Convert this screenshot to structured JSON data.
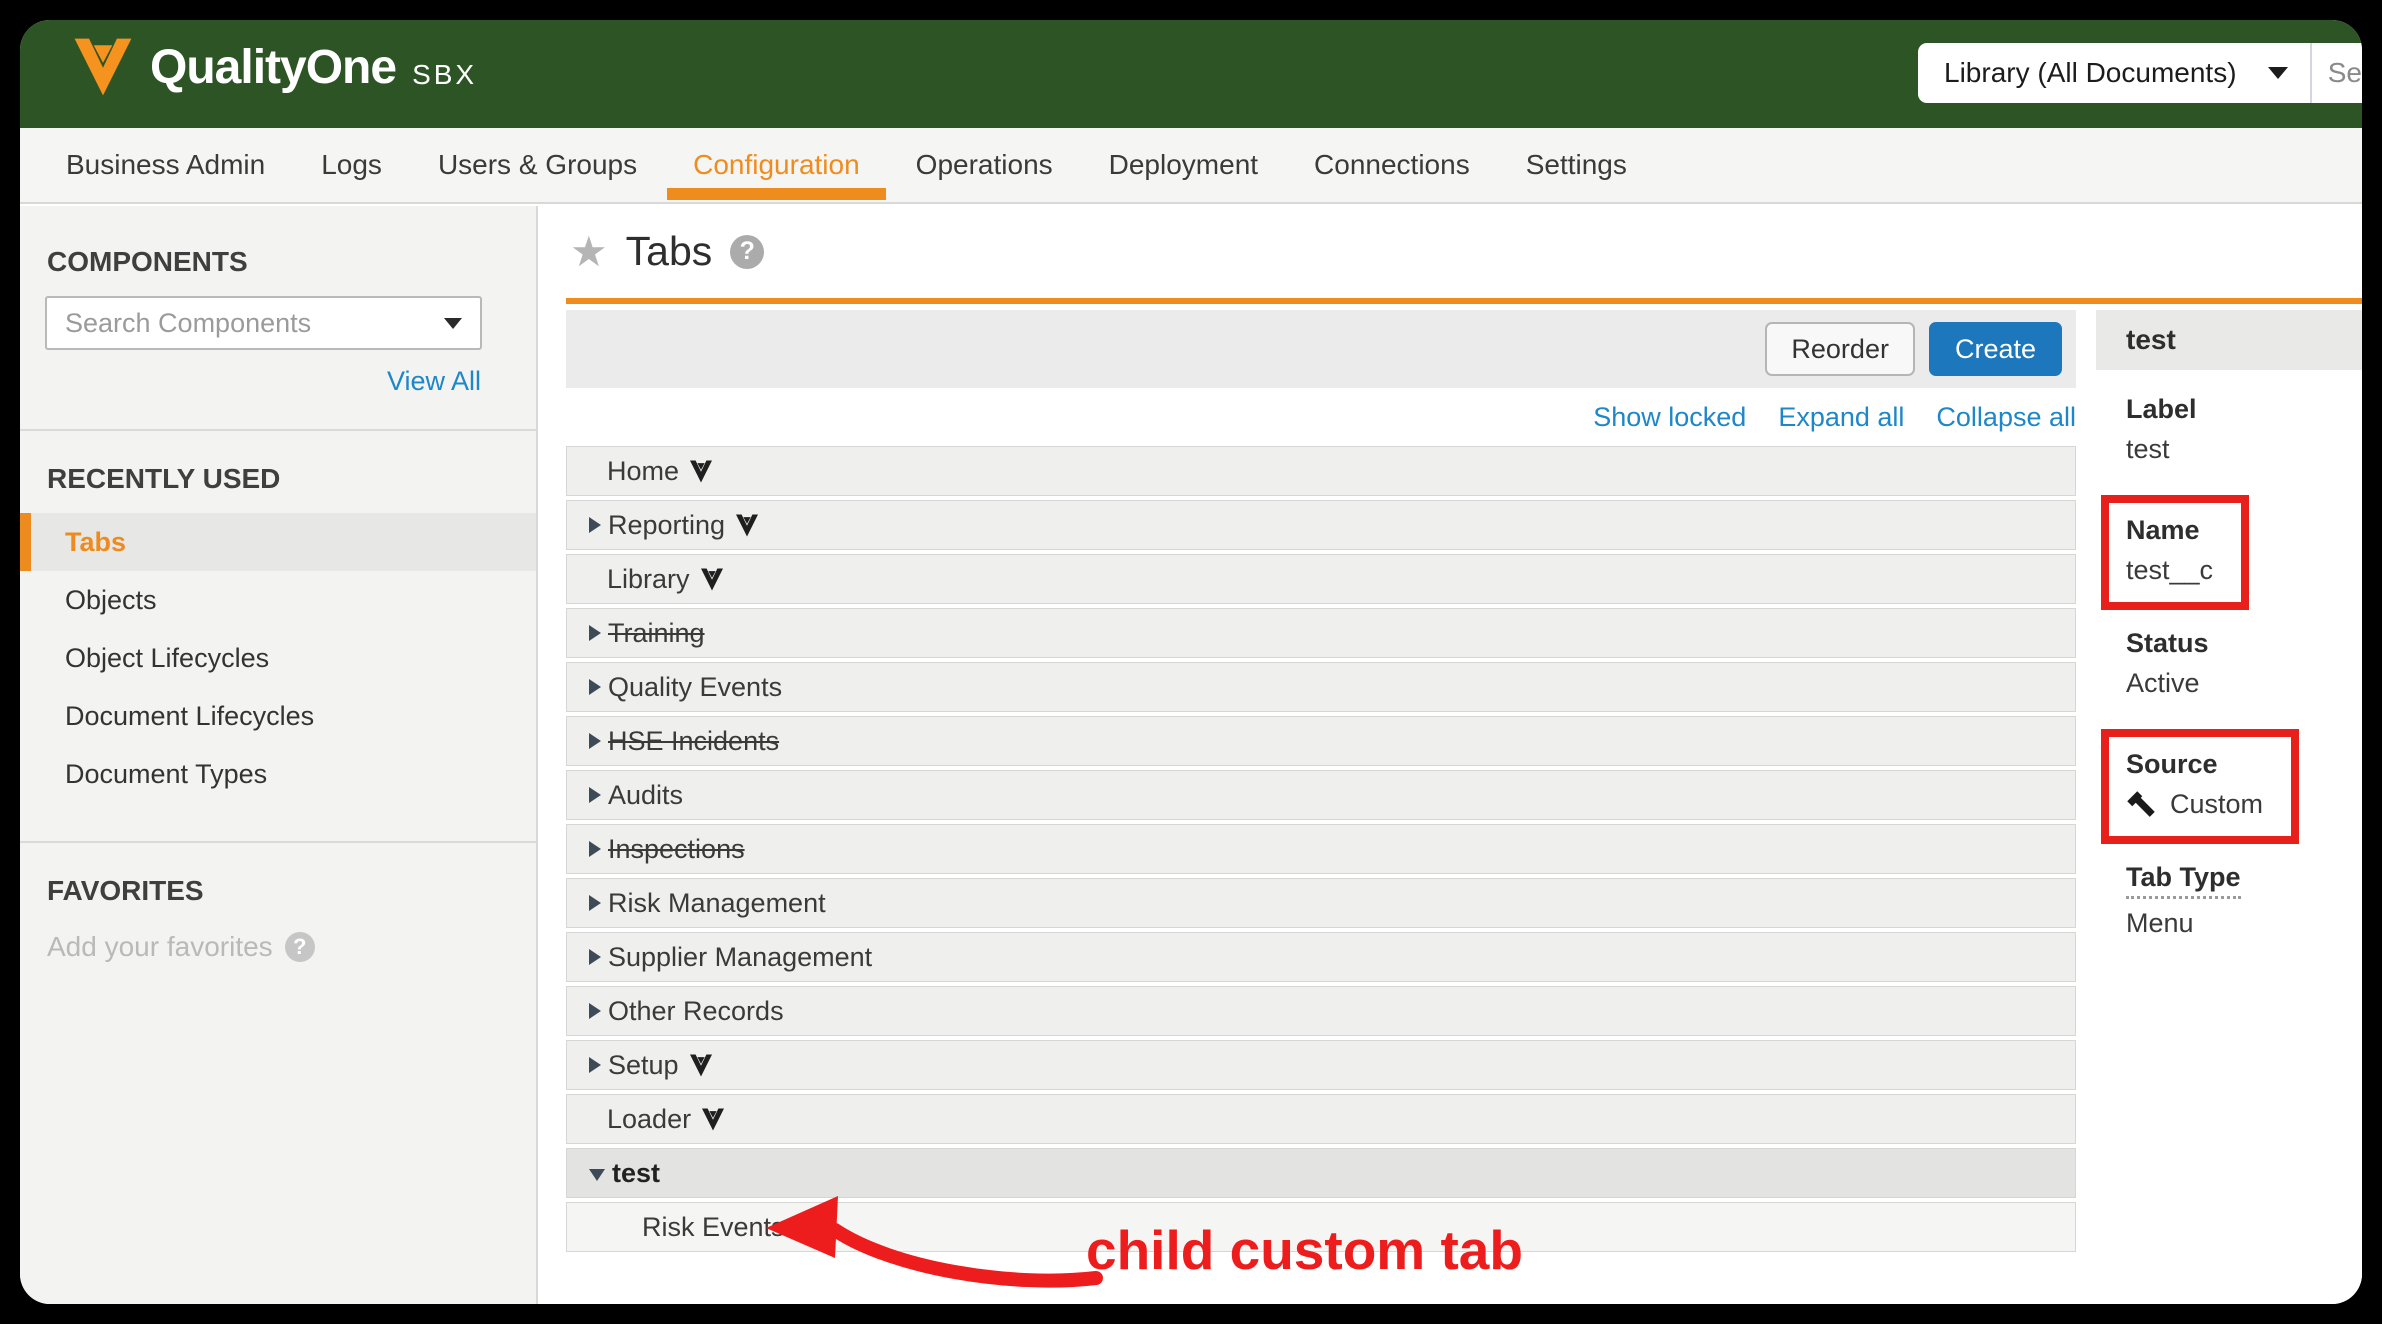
{
  "brand": {
    "name": "QualityOne",
    "env": "SBX"
  },
  "header": {
    "scope_dropdown": "Library (All Documents)",
    "search_placeholder_visible": "Se"
  },
  "nav": {
    "items": [
      "Business Admin",
      "Logs",
      "Users & Groups",
      "Configuration",
      "Operations",
      "Deployment",
      "Connections",
      "Settings"
    ],
    "active": "Configuration"
  },
  "sidebar": {
    "components_heading": "COMPONENTS",
    "search_placeholder": "Search Components",
    "view_all": "View All",
    "recently_used_heading": "RECENTLY USED",
    "recent_items": [
      "Tabs",
      "Objects",
      "Object Lifecycles",
      "Document Lifecycles",
      "Document Types"
    ],
    "selected_item": "Tabs",
    "favorites_heading": "FAVORITES",
    "favorites_empty": "Add your favorites"
  },
  "main": {
    "title": "Tabs",
    "reorder_label": "Reorder",
    "create_label": "Create",
    "links": [
      "Show locked",
      "Expand all",
      "Collapse all"
    ],
    "tab_rows": [
      {
        "label": "Home",
        "expandable": false,
        "vault_icon": true,
        "strikethrough": false,
        "child": false,
        "selected": false,
        "expanded": false
      },
      {
        "label": "Reporting",
        "expandable": true,
        "vault_icon": true,
        "strikethrough": false,
        "child": false,
        "selected": false,
        "expanded": false
      },
      {
        "label": "Library",
        "expandable": false,
        "vault_icon": true,
        "strikethrough": false,
        "child": false,
        "selected": false,
        "expanded": false
      },
      {
        "label": "Training",
        "expandable": true,
        "vault_icon": false,
        "strikethrough": true,
        "child": false,
        "selected": false,
        "expanded": false
      },
      {
        "label": "Quality Events",
        "expandable": true,
        "vault_icon": false,
        "strikethrough": false,
        "child": false,
        "selected": false,
        "expanded": false
      },
      {
        "label": "HSE Incidents",
        "expandable": true,
        "vault_icon": false,
        "strikethrough": true,
        "child": false,
        "selected": false,
        "expanded": false
      },
      {
        "label": "Audits",
        "expandable": true,
        "vault_icon": false,
        "strikethrough": false,
        "child": false,
        "selected": false,
        "expanded": false
      },
      {
        "label": "Inspections",
        "expandable": true,
        "vault_icon": false,
        "strikethrough": true,
        "child": false,
        "selected": false,
        "expanded": false
      },
      {
        "label": "Risk Management",
        "expandable": true,
        "vault_icon": false,
        "strikethrough": false,
        "child": false,
        "selected": false,
        "expanded": false
      },
      {
        "label": "Supplier Management",
        "expandable": true,
        "vault_icon": false,
        "strikethrough": false,
        "child": false,
        "selected": false,
        "expanded": false
      },
      {
        "label": "Other Records",
        "expandable": true,
        "vault_icon": false,
        "strikethrough": false,
        "child": false,
        "selected": false,
        "expanded": false
      },
      {
        "label": "Setup",
        "expandable": true,
        "vault_icon": true,
        "strikethrough": false,
        "child": false,
        "selected": false,
        "expanded": false
      },
      {
        "label": "Loader",
        "expandable": false,
        "vault_icon": true,
        "strikethrough": false,
        "child": false,
        "selected": false,
        "expanded": false
      },
      {
        "label": "test",
        "expandable": true,
        "vault_icon": false,
        "strikethrough": false,
        "child": false,
        "selected": true,
        "expanded": true
      },
      {
        "label": "Risk Events",
        "expandable": false,
        "vault_icon": false,
        "strikethrough": false,
        "child": true,
        "selected": false,
        "expanded": false
      }
    ]
  },
  "details_panel": {
    "title": "test",
    "fields": [
      {
        "label": "Label",
        "value": "test",
        "highlighted": false,
        "icon": null,
        "label_dotted": false
      },
      {
        "label": "Name",
        "value": "test__c",
        "highlighted": true,
        "icon": null,
        "label_dotted": false
      },
      {
        "label": "Status",
        "value": "Active",
        "highlighted": false,
        "icon": null,
        "label_dotted": false
      },
      {
        "label": "Source",
        "value": "Custom",
        "highlighted": true,
        "icon": "hammer",
        "label_dotted": false
      },
      {
        "label": "Tab Type",
        "value": "Menu",
        "highlighted": false,
        "icon": null,
        "label_dotted": true
      }
    ]
  },
  "annotation": {
    "text": "child custom tab"
  },
  "colors": {
    "header_green": "#2d5425",
    "accent_orange": "#ef8c1e",
    "logo_orange": "#f6921e",
    "link_blue": "#1d87c9",
    "primary_button_blue": "#1d77bd",
    "annotation_red": "#ee1d1d"
  }
}
